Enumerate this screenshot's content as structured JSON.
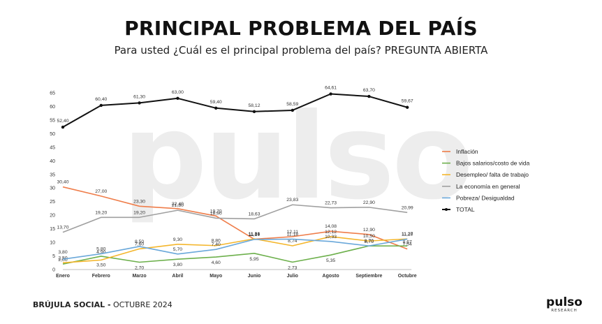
{
  "header": {
    "title": "PRINCIPAL PROBLEMA DEL PAÍS",
    "subtitle": "Para usted ¿Cuál es el principal problema del país? PREGUNTA ABIERTA"
  },
  "footer": {
    "brand_bold": "BRÚJULA SOCIAL -",
    "brand_date": " OCTUBRE 2024"
  },
  "logo": {
    "text": "pulso",
    "sub": "RESEARCH"
  },
  "watermark": "pulso",
  "chart_data": {
    "type": "line",
    "title": "",
    "xlabel": "",
    "ylabel": "",
    "ylim": [
      0,
      65
    ],
    "yticks": [
      0,
      5,
      10,
      15,
      20,
      25,
      30,
      35,
      40,
      45,
      50,
      55,
      60,
      65
    ],
    "categories": [
      "Enero",
      "Febrero",
      "Marzo",
      "Abril",
      "Mayo",
      "Junio",
      "Julio",
      "Agosto",
      "Septiembre",
      "Octubre"
    ],
    "grid": false,
    "legend_position": "right",
    "series": [
      {
        "name": "Inflación",
        "color": "#ef7d4a",
        "values": [
          30.4,
          27.0,
          23.3,
          22.4,
          19.7,
          11.16,
          12.11,
          14.08,
          12.9,
          7.54
        ]
      },
      {
        "name": "Bajos salarios/costo de vida",
        "color": "#6db04c",
        "values": [
          2.0,
          4.9,
          2.7,
          3.8,
          4.6,
          5.95,
          2.73,
          5.35,
          8.7,
          8.67
        ]
      },
      {
        "name": "Desempleo/ falta de trabajo",
        "color": "#f4b62c",
        "values": [
          2.5,
          3.5,
          7.6,
          9.3,
          8.8,
          11.31,
          8.74,
          12.12,
          10.5,
          11.27
        ]
      },
      {
        "name": "La economía en general",
        "color": "#a0a0a0",
        "values": [
          13.7,
          19.2,
          19.2,
          21.8,
          18.9,
          18.63,
          23.83,
          22.73,
          22.9,
          20.99
        ]
      },
      {
        "name": "Pobreza/ Desigualdad",
        "color": "#6aa8da",
        "values": [
          3.8,
          5.8,
          8.5,
          5.7,
          7.4,
          11.07,
          11.18,
          10.33,
          8.7,
          11.2
        ]
      },
      {
        "name": "TOTAL",
        "color": "#111111",
        "values": [
          52.4,
          60.4,
          61.3,
          63.0,
          59.4,
          58.12,
          58.59,
          64.61,
          63.7,
          59.67
        ]
      }
    ],
    "data_labels": [
      [
        [
          "30,40",
          "27,00",
          "23,30",
          "22,40",
          "19,70",
          "11,16",
          "12,11",
          "14,08",
          "12,90",
          "7,54"
        ]
      ],
      [
        [
          "2,00",
          "4,90",
          "2,70",
          "3,80",
          "4,60",
          "5,95",
          "2,73",
          "5,35",
          "8,70",
          "8,67"
        ]
      ],
      [
        [
          "2,50",
          "3,50",
          "7,60",
          "9,30",
          "8,80",
          "11,31",
          "8,74",
          "12,12",
          "10,50",
          "11,27"
        ]
      ],
      [
        [
          "13,70",
          "19,20",
          "19,20",
          "21,80",
          "18,90",
          "18,63",
          "23,83",
          "22,73",
          "22,90",
          "20,99"
        ]
      ],
      [
        [
          "3,80",
          "5,80",
          "8,50",
          "5,70",
          "7,40",
          "11,07",
          "11,18",
          "10,33",
          "8,70",
          "11,20"
        ]
      ],
      [
        [
          "52,40",
          "60,40",
          "61,30",
          "63,00",
          "59,40",
          "58,12",
          "58,59",
          "64,61",
          "63,70",
          "59,67"
        ]
      ]
    ]
  }
}
